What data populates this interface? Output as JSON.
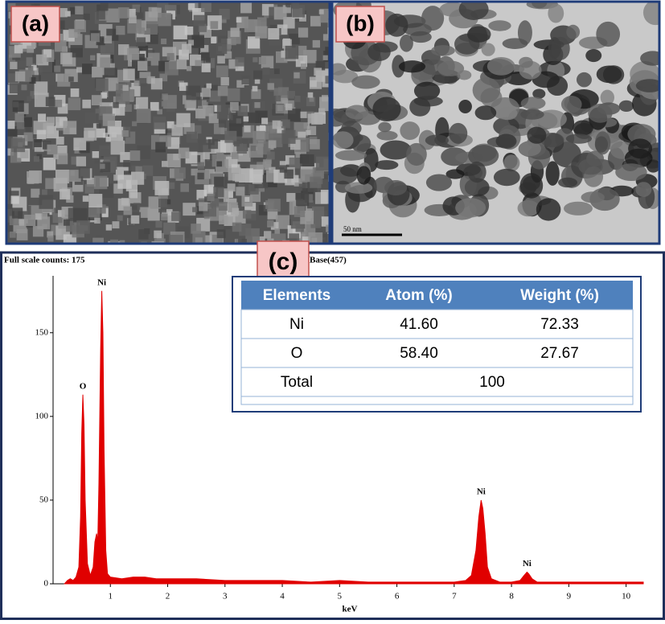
{
  "panels": {
    "a": {
      "label": "(a)"
    },
    "b": {
      "label": "(b)",
      "scale_bar": "50 nm"
    },
    "c": {
      "label": "(c)"
    }
  },
  "chart_data": {
    "type": "area",
    "title": "Full scale counts: 175",
    "subtitle": "Base(457)",
    "xlabel": "keV",
    "color": "#e00000",
    "x": [
      0.2,
      0.25,
      0.3,
      0.35,
      0.4,
      0.45,
      0.48,
      0.5,
      0.52,
      0.54,
      0.56,
      0.6,
      0.65,
      0.7,
      0.73,
      0.76,
      0.78,
      0.8,
      0.83,
      0.85,
      0.87,
      0.89,
      0.92,
      0.95,
      1.0,
      1.2,
      1.4,
      1.6,
      1.8,
      2.0,
      2.5,
      3.0,
      3.5,
      4.0,
      4.5,
      5.0,
      5.5,
      6.0,
      6.5,
      7.0,
      7.2,
      7.3,
      7.38,
      7.43,
      7.47,
      7.5,
      7.54,
      7.58,
      7.65,
      7.8,
      8.0,
      8.15,
      8.22,
      8.27,
      8.3,
      8.36,
      8.45,
      9.0,
      9.5,
      10.0,
      10.3
    ],
    "values": [
      0,
      2,
      3,
      2,
      4,
      10,
      40,
      90,
      113,
      95,
      50,
      12,
      5,
      10,
      25,
      30,
      25,
      60,
      140,
      175,
      150,
      80,
      20,
      6,
      4,
      3,
      4,
      4,
      3,
      3,
      3,
      2,
      2,
      2,
      1,
      2,
      1,
      1,
      1,
      1,
      2,
      5,
      20,
      40,
      50,
      45,
      30,
      10,
      3,
      1,
      1,
      2,
      5,
      7,
      6,
      3,
      1,
      1,
      1,
      1,
      1
    ],
    "peak_labels": [
      "O",
      "Ni",
      "Ni",
      "Ni"
    ],
    "xlim": [
      0,
      10.3
    ],
    "ylim": [
      0,
      184
    ],
    "xticks": [
      1,
      2,
      3,
      4,
      5,
      6,
      7,
      8,
      9,
      10
    ],
    "yticks": [
      0,
      50,
      100,
      150
    ]
  },
  "table": {
    "header": [
      "Elements",
      "Atom (%)",
      "Weight (%)"
    ],
    "rows": [
      [
        "Ni",
        "41.60",
        "72.33"
      ],
      [
        "O",
        "58.40",
        "27.67"
      ],
      [
        "Total",
        "100"
      ]
    ]
  }
}
